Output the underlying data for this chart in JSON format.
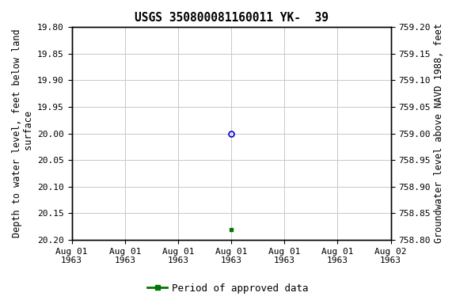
{
  "title": "USGS 350800081160011 YK-  39",
  "left_ylabel": "Depth to water level, feet below land\n surface",
  "right_ylabel": "Groundwater level above NAVD 1988, feet",
  "ylim_left_top": 19.8,
  "ylim_left_bottom": 20.2,
  "ylim_right_top": 759.2,
  "ylim_right_bottom": 758.8,
  "left_yticks": [
    19.8,
    19.85,
    19.9,
    19.95,
    20.0,
    20.05,
    20.1,
    20.15,
    20.2
  ],
  "right_yticks": [
    759.2,
    759.15,
    759.1,
    759.05,
    759.0,
    758.95,
    758.9,
    758.85,
    758.8
  ],
  "left_ytick_labels": [
    "19.80",
    "19.85",
    "19.90",
    "19.95",
    "20.00",
    "20.05",
    "20.10",
    "20.15",
    "20.20"
  ],
  "right_ytick_labels": [
    "759.20",
    "759.15",
    "759.10",
    "759.05",
    "759.00",
    "758.95",
    "758.90",
    "758.85",
    "758.80"
  ],
  "xlim": [
    0,
    6
  ],
  "xtick_positions": [
    0,
    1,
    2,
    3,
    4,
    5,
    6
  ],
  "xtick_labels": [
    "Aug 01\n1963",
    "Aug 01\n1963",
    "Aug 01\n1963",
    "Aug 01\n1963",
    "Aug 01\n1963",
    "Aug 01\n1963",
    "Aug 02\n1963"
  ],
  "point_blue_x": 3,
  "point_blue_y": 20.0,
  "point_green_x": 3,
  "point_green_y": 20.18,
  "blue_color": "#0000cc",
  "green_color": "#007700",
  "legend_label": "Period of approved data",
  "background_color": "#ffffff",
  "grid_color": "#c8c8c8",
  "title_fontsize": 10.5,
  "label_fontsize": 8.5,
  "tick_fontsize": 8.0,
  "legend_fontsize": 9.0
}
